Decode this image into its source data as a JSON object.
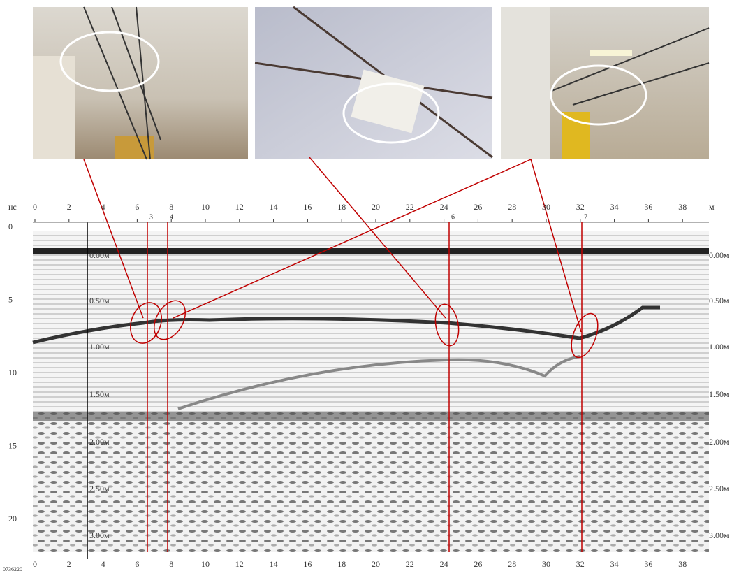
{
  "radargram": {
    "time_unit": "нс",
    "distance_unit": "м",
    "top_ticks": [
      "0",
      "2",
      "4",
      "6",
      "8",
      "10",
      "12",
      "14",
      "16",
      "18",
      "20",
      "22",
      "24",
      "26",
      "28",
      "30",
      "32",
      "34",
      "36",
      "38"
    ],
    "bottom_ticks": [
      "0",
      "2",
      "4",
      "6",
      "8",
      "10",
      "12",
      "14",
      "16",
      "18",
      "20",
      "22",
      "24",
      "26",
      "28",
      "30",
      "32",
      "34",
      "36",
      "38"
    ],
    "time_ticks": [
      "0",
      "5",
      "10",
      "15",
      "20"
    ],
    "depth_labels_left": [
      "0.00м",
      "0.50м",
      "1.00м",
      "1.50м",
      "2.00м",
      "2.50м",
      "3.00м"
    ],
    "depth_labels_right": [
      "0.00м",
      "0.50м",
      "1.00м",
      "1.50м",
      "2.00м",
      "2.50м",
      "3.00м"
    ],
    "markers": [
      "3",
      "4",
      "6",
      "7"
    ],
    "file_id": "0736220"
  }
}
